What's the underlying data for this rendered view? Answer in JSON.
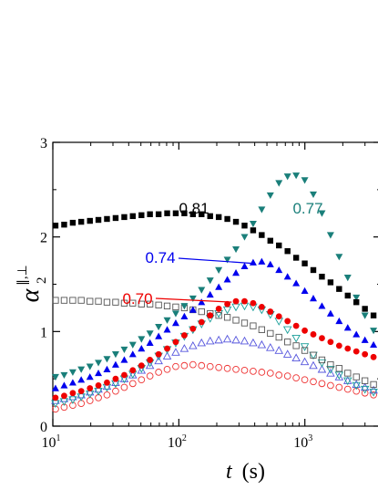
{
  "chart_data": {
    "type": "scatter",
    "title": "",
    "xlabel": {
      "symbol": "t",
      "unit": "(s)"
    },
    "ylabel": {
      "symbol": "α",
      "subscript": "2",
      "superscript": "∥,⊥"
    },
    "xscale": "log",
    "xlim": [
      10,
      4000
    ],
    "ylim": [
      0,
      3
    ],
    "x_ticks": [
      {
        "base": "10",
        "exp": "1"
      },
      {
        "base": "10",
        "exp": "2"
      },
      {
        "base": "10",
        "exp": "3"
      }
    ],
    "y_ticks": [
      "0",
      "1",
      "2",
      "3"
    ],
    "grid": false,
    "x": [
      10.5,
      12.3,
      14.4,
      16.8,
      19.7,
      23.0,
      26.9,
      31.5,
      36.9,
      43.1,
      50.5,
      59.0,
      69.1,
      80.8,
      94.5,
      110.6,
      129.4,
      151.4,
      177.2,
      207.3,
      242.6,
      283.9,
      332.2,
      388.7,
      454.8,
      532.2,
      622.7,
      728.7,
      852.7,
      997.8,
      1167.5,
      1366.2,
      1598.6,
      1870.6,
      2188.8,
      2561.2,
      2997.0,
      3506.9,
      4000
    ],
    "series": [
      {
        "key": "s081",
        "marker": "square-filled",
        "color": "#000000",
        "values": [
          2.12,
          2.13,
          2.15,
          2.16,
          2.17,
          2.18,
          2.19,
          2.2,
          2.21,
          2.22,
          2.23,
          2.24,
          2.24,
          2.25,
          2.25,
          2.25,
          2.24,
          2.24,
          2.22,
          2.21,
          2.19,
          2.16,
          2.12,
          2.07,
          2.02,
          1.96,
          1.91,
          1.85,
          1.78,
          1.72,
          1.65,
          1.58,
          1.52,
          1.45,
          1.38,
          1.31,
          1.24,
          1.17,
          1.11
        ]
      },
      {
        "key": "s077",
        "marker": "triangle-down-filled",
        "color": "#1a7f7a",
        "values": [
          0.52,
          0.54,
          0.57,
          0.6,
          0.63,
          0.67,
          0.71,
          0.76,
          0.81,
          0.86,
          0.92,
          0.98,
          1.05,
          1.12,
          1.19,
          1.27,
          1.35,
          1.44,
          1.54,
          1.65,
          1.76,
          1.87,
          2.0,
          2.14,
          2.29,
          2.44,
          2.57,
          2.64,
          2.65,
          2.6,
          2.45,
          2.25,
          2.02,
          1.79,
          1.57,
          1.36,
          1.17,
          1.01,
          0.87
        ]
      },
      {
        "key": "s074",
        "marker": "triangle-up-filled",
        "color": "#0000ee",
        "values": [
          0.4,
          0.43,
          0.46,
          0.49,
          0.52,
          0.56,
          0.6,
          0.65,
          0.7,
          0.76,
          0.82,
          0.88,
          0.95,
          1.02,
          1.09,
          1.16,
          1.23,
          1.31,
          1.39,
          1.47,
          1.55,
          1.62,
          1.69,
          1.73,
          1.74,
          1.71,
          1.65,
          1.58,
          1.51,
          1.43,
          1.35,
          1.27,
          1.19,
          1.11,
          1.04,
          0.97,
          0.91,
          0.86,
          0.82
        ]
      },
      {
        "key": "s070",
        "marker": "circle-filled",
        "color": "#ee0000",
        "values": [
          0.3,
          0.32,
          0.35,
          0.37,
          0.4,
          0.43,
          0.46,
          0.5,
          0.54,
          0.59,
          0.64,
          0.7,
          0.76,
          0.82,
          0.89,
          0.96,
          1.03,
          1.1,
          1.17,
          1.24,
          1.29,
          1.32,
          1.32,
          1.3,
          1.26,
          1.21,
          1.16,
          1.11,
          1.06,
          1.01,
          0.97,
          0.93,
          0.89,
          0.85,
          0.82,
          0.79,
          0.76,
          0.73,
          0.7
        ]
      },
      {
        "key": "open-square",
        "marker": "square-open",
        "color": "#555555",
        "values": [
          1.33,
          1.33,
          1.33,
          1.33,
          1.32,
          1.32,
          1.31,
          1.31,
          1.3,
          1.3,
          1.29,
          1.29,
          1.28,
          1.27,
          1.26,
          1.25,
          1.23,
          1.21,
          1.19,
          1.17,
          1.15,
          1.12,
          1.09,
          1.06,
          1.02,
          0.98,
          0.94,
          0.89,
          0.85,
          0.8,
          0.75,
          0.7,
          0.65,
          0.61,
          0.56,
          0.52,
          0.48,
          0.44,
          0.4
        ]
      },
      {
        "key": "open-triangle-down",
        "marker": "triangle-down-open",
        "color": "#1a9f9a",
        "values": [
          0.24,
          0.26,
          0.28,
          0.31,
          0.34,
          0.37,
          0.41,
          0.45,
          0.5,
          0.55,
          0.61,
          0.67,
          0.74,
          0.81,
          0.88,
          0.95,
          1.02,
          1.08,
          1.14,
          1.19,
          1.23,
          1.26,
          1.27,
          1.26,
          1.23,
          1.18,
          1.11,
          1.02,
          0.93,
          0.84,
          0.75,
          0.67,
          0.6,
          0.54,
          0.48,
          0.43,
          0.39,
          0.36,
          0.33
        ]
      },
      {
        "key": "open-triangle-up",
        "marker": "triangle-up-open",
        "color": "#5555dd",
        "values": [
          0.27,
          0.29,
          0.31,
          0.33,
          0.36,
          0.39,
          0.42,
          0.46,
          0.5,
          0.54,
          0.59,
          0.64,
          0.69,
          0.74,
          0.78,
          0.82,
          0.85,
          0.88,
          0.9,
          0.91,
          0.92,
          0.91,
          0.9,
          0.88,
          0.86,
          0.83,
          0.8,
          0.76,
          0.72,
          0.68,
          0.64,
          0.6,
          0.56,
          0.52,
          0.48,
          0.44,
          0.41,
          0.38,
          0.35
        ]
      },
      {
        "key": "open-circle",
        "marker": "circle-open",
        "color": "#ee3333",
        "values": [
          0.18,
          0.2,
          0.22,
          0.24,
          0.27,
          0.3,
          0.33,
          0.37,
          0.41,
          0.45,
          0.49,
          0.53,
          0.57,
          0.6,
          0.63,
          0.64,
          0.65,
          0.64,
          0.63,
          0.62,
          0.61,
          0.6,
          0.59,
          0.58,
          0.57,
          0.56,
          0.54,
          0.53,
          0.51,
          0.49,
          0.47,
          0.45,
          0.43,
          0.41,
          0.39,
          0.37,
          0.35,
          0.33,
          0.31
        ]
      }
    ],
    "annotations": [
      {
        "text": "0.81",
        "color": "#000000",
        "arrow": false
      },
      {
        "text": "0.77",
        "color": "#1a7f7a",
        "arrow": false
      },
      {
        "text": "0.74",
        "color": "#0000ee",
        "arrow": true,
        "arrow_to": [
          440,
          1.74
        ]
      },
      {
        "text": "0.70",
        "color": "#ee0000",
        "arrow": true,
        "arrow_to": [
          300,
          1.33
        ]
      }
    ]
  }
}
